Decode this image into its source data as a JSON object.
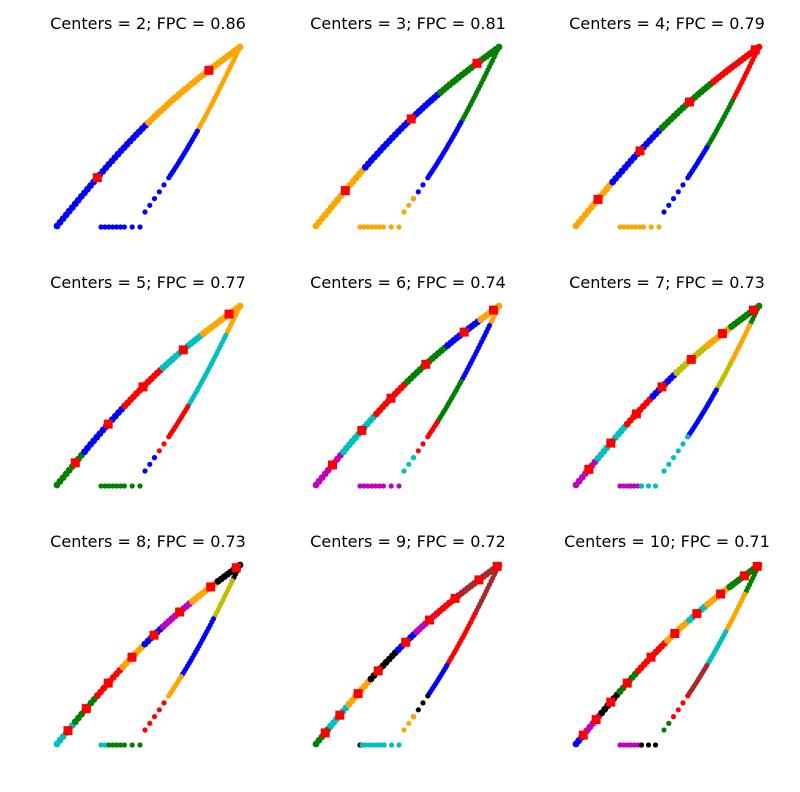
{
  "chart_data": [
    {
      "type": "scatter",
      "title": "Centers = 2; FPC = 0.86",
      "axes_visible": false,
      "segments": [
        {
          "color": "#0000ff",
          "branch": "upper",
          "from": 0.0,
          "to": 0.5
        },
        {
          "color": "#ffa500",
          "branch": "upper",
          "from": 0.5,
          "to": 1.0
        },
        {
          "color": "#ffa500",
          "branch": "lower",
          "from": 0.55,
          "to": 1.0
        },
        {
          "color": "#0000ff",
          "branch": "lower",
          "from": 0.0,
          "to": 0.55
        },
        {
          "color": "#0000ff",
          "branch": "bottom",
          "from": 0.0,
          "to": 1.0
        }
      ],
      "centers": [
        {
          "branch": "upper",
          "t": 0.22
        },
        {
          "branch": "upper",
          "t": 0.83
        }
      ]
    },
    {
      "type": "scatter",
      "title": "Centers = 3; FPC = 0.81",
      "axes_visible": false,
      "segments": [
        {
          "color": "#ffa500",
          "branch": "upper",
          "from": 0.0,
          "to": 0.27
        },
        {
          "color": "#0000ff",
          "branch": "upper",
          "from": 0.27,
          "to": 0.68
        },
        {
          "color": "#008000",
          "branch": "upper",
          "from": 0.68,
          "to": 1.0
        },
        {
          "color": "#008000",
          "branch": "lower",
          "from": 0.6,
          "to": 1.0
        },
        {
          "color": "#0000ff",
          "branch": "lower",
          "from": 0.1,
          "to": 0.6
        },
        {
          "color": "#ffa500",
          "branch": "lower",
          "from": 0.0,
          "to": 0.1
        },
        {
          "color": "#ffa500",
          "branch": "bottom",
          "from": 0.0,
          "to": 1.0
        }
      ],
      "centers": [
        {
          "branch": "upper",
          "t": 0.16
        },
        {
          "branch": "upper",
          "t": 0.52
        },
        {
          "branch": "upper",
          "t": 0.88
        }
      ]
    },
    {
      "type": "scatter",
      "title": "Centers = 4; FPC = 0.79",
      "axes_visible": false,
      "segments": [
        {
          "color": "#ffa500",
          "branch": "upper",
          "from": 0.0,
          "to": 0.2
        },
        {
          "color": "#0000ff",
          "branch": "upper",
          "from": 0.2,
          "to": 0.47
        },
        {
          "color": "#008000",
          "branch": "upper",
          "from": 0.47,
          "to": 0.75
        },
        {
          "color": "#ff0000",
          "branch": "upper",
          "from": 0.75,
          "to": 1.0
        },
        {
          "color": "#ff0000",
          "branch": "lower",
          "from": 0.72,
          "to": 1.0
        },
        {
          "color": "#008000",
          "branch": "lower",
          "from": 0.45,
          "to": 0.72
        },
        {
          "color": "#0000ff",
          "branch": "lower",
          "from": 0.0,
          "to": 0.45
        },
        {
          "color": "#ffa500",
          "branch": "bottom",
          "from": 0.0,
          "to": 1.0
        }
      ],
      "centers": [
        {
          "branch": "upper",
          "t": 0.12
        },
        {
          "branch": "upper",
          "t": 0.35
        },
        {
          "branch": "upper",
          "t": 0.62
        },
        {
          "branch": "upper",
          "t": 0.98
        }
      ]
    },
    {
      "type": "scatter",
      "title": "Centers = 5; FPC = 0.77",
      "axes_visible": false,
      "segments": [
        {
          "color": "#008000",
          "branch": "upper",
          "from": 0.0,
          "to": 0.15
        },
        {
          "color": "#0000ff",
          "branch": "upper",
          "from": 0.15,
          "to": 0.37
        },
        {
          "color": "#ff0000",
          "branch": "upper",
          "from": 0.37,
          "to": 0.58
        },
        {
          "color": "#00bfbf",
          "branch": "upper",
          "from": 0.58,
          "to": 0.8
        },
        {
          "color": "#ffa500",
          "branch": "upper",
          "from": 0.8,
          "to": 1.0
        },
        {
          "color": "#ffa500",
          "branch": "lower",
          "from": 0.85,
          "to": 1.0
        },
        {
          "color": "#00bfbf",
          "branch": "lower",
          "from": 0.45,
          "to": 0.85
        },
        {
          "color": "#ff0000",
          "branch": "lower",
          "from": 0.1,
          "to": 0.45
        },
        {
          "color": "#0000ff",
          "branch": "lower",
          "from": 0.0,
          "to": 0.1
        },
        {
          "color": "#008000",
          "branch": "bottom",
          "from": 0.0,
          "to": 1.0
        }
      ],
      "centers": [
        {
          "branch": "upper",
          "t": 0.1
        },
        {
          "branch": "upper",
          "t": 0.28
        },
        {
          "branch": "upper",
          "t": 0.47
        },
        {
          "branch": "upper",
          "t": 0.69
        },
        {
          "branch": "upper",
          "t": 0.94
        }
      ]
    },
    {
      "type": "scatter",
      "title": "Centers = 6; FPC = 0.74",
      "axes_visible": false,
      "segments": [
        {
          "color": "#bf00bf",
          "branch": "upper",
          "from": 0.0,
          "to": 0.15
        },
        {
          "color": "#00bfbf",
          "branch": "upper",
          "from": 0.15,
          "to": 0.33
        },
        {
          "color": "#ff0000",
          "branch": "upper",
          "from": 0.33,
          "to": 0.5
        },
        {
          "color": "#008000",
          "branch": "upper",
          "from": 0.5,
          "to": 0.72
        },
        {
          "color": "#0000ff",
          "branch": "upper",
          "from": 0.72,
          "to": 0.9
        },
        {
          "color": "#ffa500",
          "branch": "upper",
          "from": 0.9,
          "to": 1.0
        },
        {
          "color": "#ffa500",
          "branch": "lower",
          "from": 0.9,
          "to": 1.0
        },
        {
          "color": "#0000ff",
          "branch": "lower",
          "from": 0.6,
          "to": 0.9
        },
        {
          "color": "#008000",
          "branch": "lower",
          "from": 0.35,
          "to": 0.6
        },
        {
          "color": "#ff0000",
          "branch": "lower",
          "from": 0.1,
          "to": 0.35
        },
        {
          "color": "#00bfbf",
          "branch": "lower",
          "from": 0.0,
          "to": 0.1
        },
        {
          "color": "#bf00bf",
          "branch": "bottom",
          "from": 0.0,
          "to": 1.0
        }
      ],
      "centers": [
        {
          "branch": "upper",
          "t": 0.09
        },
        {
          "branch": "upper",
          "t": 0.25
        },
        {
          "branch": "upper",
          "t": 0.41
        },
        {
          "branch": "upper",
          "t": 0.6
        },
        {
          "branch": "upper",
          "t": 0.81
        },
        {
          "branch": "upper",
          "t": 0.97
        }
      ]
    },
    {
      "type": "scatter",
      "title": "Centers = 7; FPC = 0.73",
      "axes_visible": false,
      "segments": [
        {
          "color": "#bf00bf",
          "branch": "upper",
          "from": 0.0,
          "to": 0.12
        },
        {
          "color": "#00bfbf",
          "branch": "upper",
          "from": 0.12,
          "to": 0.28
        },
        {
          "color": "#ff0000",
          "branch": "upper",
          "from": 0.28,
          "to": 0.42
        },
        {
          "color": "#0000ff",
          "branch": "upper",
          "from": 0.42,
          "to": 0.55
        },
        {
          "color": "#bfbf00",
          "branch": "upper",
          "from": 0.55,
          "to": 0.72
        },
        {
          "color": "#ffa500",
          "branch": "upper",
          "from": 0.72,
          "to": 0.85
        },
        {
          "color": "#008000",
          "branch": "upper",
          "from": 0.85,
          "to": 1.0
        },
        {
          "color": "#008000",
          "branch": "lower",
          "from": 0.9,
          "to": 1.0
        },
        {
          "color": "#ffa500",
          "branch": "lower",
          "from": 0.7,
          "to": 0.9
        },
        {
          "color": "#bfbf00",
          "branch": "lower",
          "from": 0.55,
          "to": 0.7
        },
        {
          "color": "#0000ff",
          "branch": "lower",
          "from": 0.25,
          "to": 0.55
        },
        {
          "color": "#00bfbf",
          "branch": "lower",
          "from": 0.0,
          "to": 0.25
        },
        {
          "color": "#bf00bf",
          "branch": "bottom",
          "from": 0.0,
          "to": 0.55
        },
        {
          "color": "#00bfbf",
          "branch": "bottom",
          "from": 0.55,
          "to": 1.0
        }
      ],
      "centers": [
        {
          "branch": "upper",
          "t": 0.07
        },
        {
          "branch": "upper",
          "t": 0.19
        },
        {
          "branch": "upper",
          "t": 0.33
        },
        {
          "branch": "upper",
          "t": 0.47
        },
        {
          "branch": "upper",
          "t": 0.63
        },
        {
          "branch": "upper",
          "t": 0.8
        },
        {
          "branch": "upper",
          "t": 0.97
        }
      ]
    },
    {
      "type": "scatter",
      "title": "Centers = 8; FPC = 0.73",
      "axes_visible": false,
      "segments": [
        {
          "color": "#00bfbf",
          "branch": "upper",
          "from": 0.0,
          "to": 0.1
        },
        {
          "color": "#008000",
          "branch": "upper",
          "from": 0.1,
          "to": 0.22
        },
        {
          "color": "#ff0000",
          "branch": "upper",
          "from": 0.22,
          "to": 0.36
        },
        {
          "color": "#ffa500",
          "branch": "upper",
          "from": 0.36,
          "to": 0.48
        },
        {
          "color": "#0000ff",
          "branch": "upper",
          "from": 0.48,
          "to": 0.58
        },
        {
          "color": "#bf00bf",
          "branch": "upper",
          "from": 0.58,
          "to": 0.74
        },
        {
          "color": "#ffa500",
          "branch": "upper",
          "from": 0.74,
          "to": 0.88
        },
        {
          "color": "#000000",
          "branch": "upper",
          "from": 0.88,
          "to": 1.0
        },
        {
          "color": "#000000",
          "branch": "lower",
          "from": 0.92,
          "to": 1.0
        },
        {
          "color": "#bfbf00",
          "branch": "lower",
          "from": 0.72,
          "to": 0.92
        },
        {
          "color": "#0000ff",
          "branch": "lower",
          "from": 0.38,
          "to": 0.72
        },
        {
          "color": "#ffa500",
          "branch": "lower",
          "from": 0.2,
          "to": 0.38
        },
        {
          "color": "#ff0000",
          "branch": "lower",
          "from": 0.0,
          "to": 0.2
        },
        {
          "color": "#00bfbf",
          "branch": "bottom",
          "from": 0.0,
          "to": 0.2
        },
        {
          "color": "#008000",
          "branch": "bottom",
          "from": 0.2,
          "to": 1.0
        }
      ],
      "centers": [
        {
          "branch": "upper",
          "t": 0.06
        },
        {
          "branch": "upper",
          "t": 0.16
        },
        {
          "branch": "upper",
          "t": 0.28
        },
        {
          "branch": "upper",
          "t": 0.41
        },
        {
          "branch": "upper",
          "t": 0.53
        },
        {
          "branch": "upper",
          "t": 0.67
        },
        {
          "branch": "upper",
          "t": 0.84
        },
        {
          "branch": "upper",
          "t": 0.98
        }
      ]
    },
    {
      "type": "scatter",
      "title": "Centers = 9; FPC = 0.72",
      "axes_visible": false,
      "segments": [
        {
          "color": "#008000",
          "branch": "upper",
          "from": 0.0,
          "to": 0.08
        },
        {
          "color": "#00bfbf",
          "branch": "upper",
          "from": 0.08,
          "to": 0.18
        },
        {
          "color": "#ffa500",
          "branch": "upper",
          "from": 0.18,
          "to": 0.3
        },
        {
          "color": "#000000",
          "branch": "upper",
          "from": 0.3,
          "to": 0.45
        },
        {
          "color": "#0000ff",
          "branch": "upper",
          "from": 0.45,
          "to": 0.55
        },
        {
          "color": "#bf00bf",
          "branch": "upper",
          "from": 0.55,
          "to": 0.66
        },
        {
          "color": "#ff0000",
          "branch": "upper",
          "from": 0.66,
          "to": 0.78
        },
        {
          "color": "#a52a2a",
          "branch": "upper",
          "from": 0.78,
          "to": 1.0
        },
        {
          "color": "#a52a2a",
          "branch": "lower",
          "from": 0.75,
          "to": 1.0
        },
        {
          "color": "#ff0000",
          "branch": "lower",
          "from": 0.45,
          "to": 0.75
        },
        {
          "color": "#0000ff",
          "branch": "lower",
          "from": 0.25,
          "to": 0.45
        },
        {
          "color": "#000000",
          "branch": "lower",
          "from": 0.1,
          "to": 0.25
        },
        {
          "color": "#ffa500",
          "branch": "lower",
          "from": 0.0,
          "to": 0.1
        },
        {
          "color": "#000000",
          "branch": "bottom",
          "from": 0.0,
          "to": 0.05
        },
        {
          "color": "#00bfbf",
          "branch": "bottom",
          "from": 0.05,
          "to": 1.0
        }
      ],
      "centers": [
        {
          "branch": "upper",
          "t": 0.05
        },
        {
          "branch": "upper",
          "t": 0.13
        },
        {
          "branch": "upper",
          "t": 0.23
        },
        {
          "branch": "upper",
          "t": 0.34
        },
        {
          "branch": "upper",
          "t": 0.49
        },
        {
          "branch": "upper",
          "t": 0.62
        },
        {
          "branch": "upper",
          "t": 0.76
        },
        {
          "branch": "upper",
          "t": 0.89
        },
        {
          "branch": "upper",
          "t": 0.99
        }
      ]
    },
    {
      "type": "scatter",
      "title": "Centers = 10; FPC = 0.71",
      "axes_visible": false,
      "segments": [
        {
          "color": "#0000ff",
          "branch": "upper",
          "from": 0.0,
          "to": 0.06
        },
        {
          "color": "#bf00bf",
          "branch": "upper",
          "from": 0.06,
          "to": 0.14
        },
        {
          "color": "#000000",
          "branch": "upper",
          "from": 0.14,
          "to": 0.24
        },
        {
          "color": "#008000",
          "branch": "upper",
          "from": 0.24,
          "to": 0.34
        },
        {
          "color": "#ff0000",
          "branch": "upper",
          "from": 0.34,
          "to": 0.5
        },
        {
          "color": "#ffa500",
          "branch": "upper",
          "from": 0.5,
          "to": 0.62
        },
        {
          "color": "#00bfbf",
          "branch": "upper",
          "from": 0.62,
          "to": 0.72
        },
        {
          "color": "#ffa500",
          "branch": "upper",
          "from": 0.72,
          "to": 0.84
        },
        {
          "color": "#008000",
          "branch": "upper",
          "from": 0.84,
          "to": 1.0
        },
        {
          "color": "#008000",
          "branch": "lower",
          "from": 0.85,
          "to": 1.0
        },
        {
          "color": "#ffa500",
          "branch": "lower",
          "from": 0.65,
          "to": 0.85
        },
        {
          "color": "#00bfbf",
          "branch": "lower",
          "from": 0.45,
          "to": 0.65
        },
        {
          "color": "#a52a2a",
          "branch": "lower",
          "from": 0.25,
          "to": 0.45
        },
        {
          "color": "#ff0000",
          "branch": "lower",
          "from": 0.05,
          "to": 0.25
        },
        {
          "color": "#008000",
          "branch": "lower",
          "from": 0.0,
          "to": 0.05
        },
        {
          "color": "#bf00bf",
          "branch": "bottom",
          "from": 0.0,
          "to": 0.55
        },
        {
          "color": "#000000",
          "branch": "bottom",
          "from": 0.55,
          "to": 1.0
        }
      ],
      "centers": [
        {
          "branch": "upper",
          "t": 0.04
        },
        {
          "branch": "upper",
          "t": 0.11
        },
        {
          "branch": "upper",
          "t": 0.19
        },
        {
          "branch": "upper",
          "t": 0.28
        },
        {
          "branch": "upper",
          "t": 0.41
        },
        {
          "branch": "upper",
          "t": 0.54
        },
        {
          "branch": "upper",
          "t": 0.66
        },
        {
          "branch": "upper",
          "t": 0.79
        },
        {
          "branch": "upper",
          "t": 0.92
        },
        {
          "branch": "upper",
          "t": 0.99
        }
      ]
    }
  ]
}
